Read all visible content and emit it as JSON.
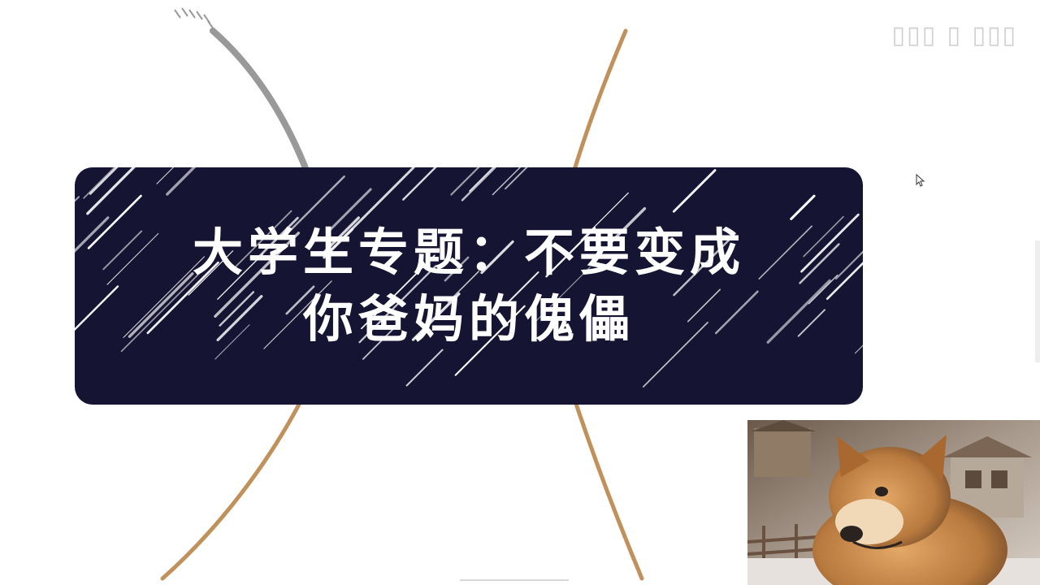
{
  "slide": {
    "title_line1": "大学生专题：不要变成",
    "title_line2": "你爸妈的傀儡",
    "card_color": "#161433",
    "accent_arc_color": "#c0915a",
    "gray_arc_color": "#999999"
  },
  "overlay": {
    "webcam_icon": "dog-webcam-icon",
    "cursor_icon": "mouse-cursor-icon"
  }
}
